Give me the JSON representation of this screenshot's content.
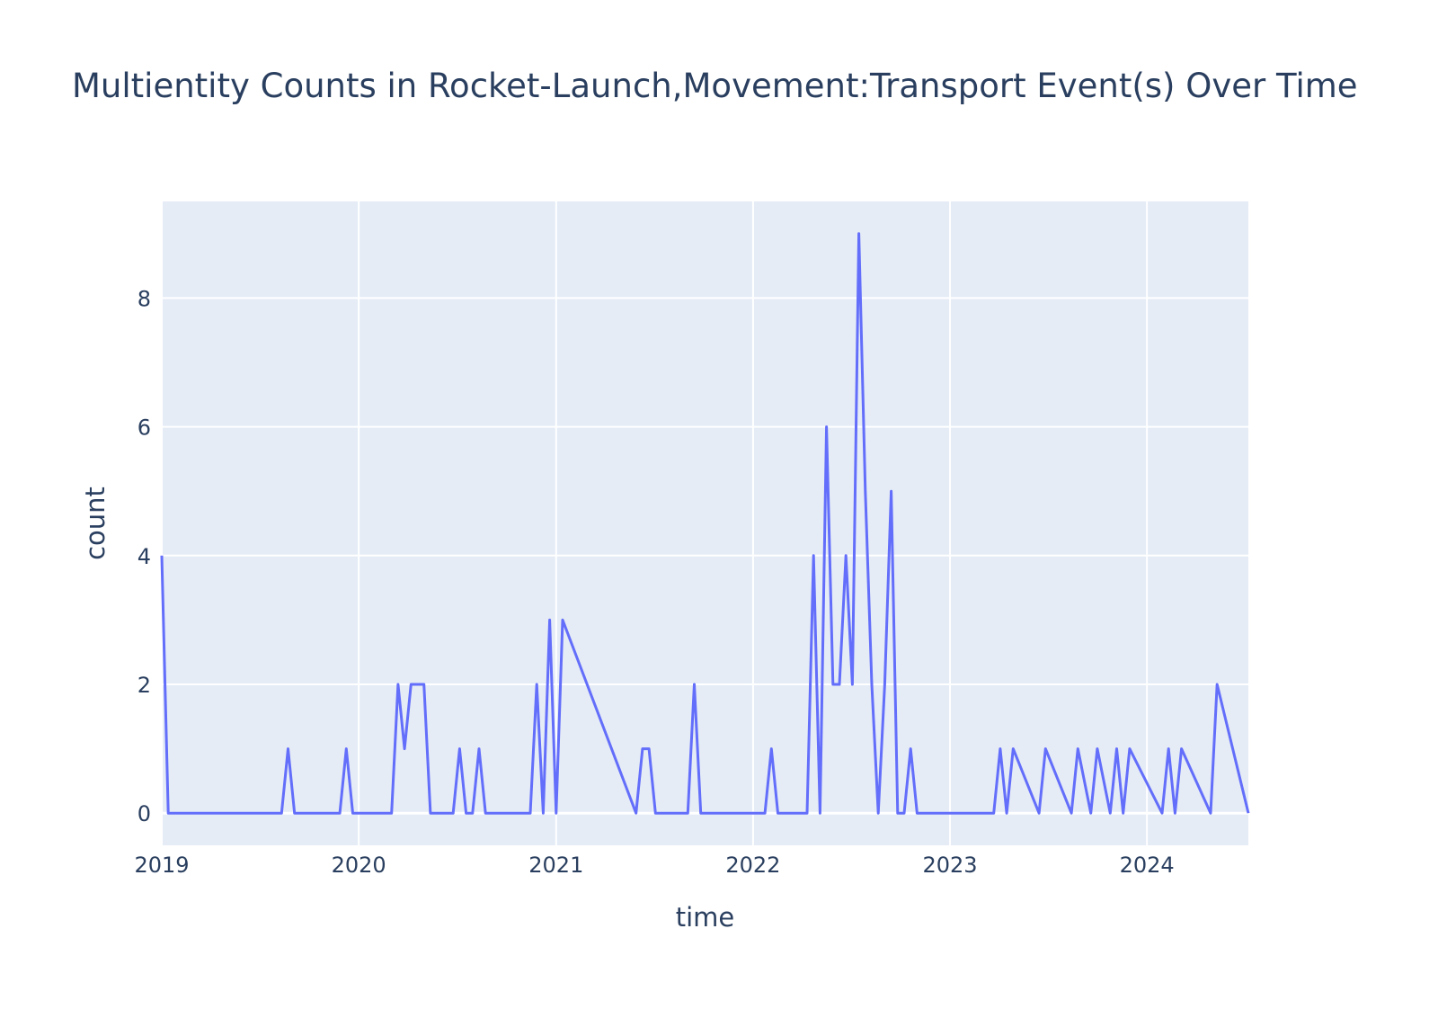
{
  "chart_data": {
    "type": "line",
    "title": "Multientity Counts in Rocket-Launch,Movement:Transport Event(s) Over Time",
    "xlabel": "time",
    "ylabel": "count",
    "x_ticks": [
      "2019",
      "2020",
      "2021",
      "2022",
      "2023",
      "2024"
    ],
    "y_ticks": [
      0,
      2,
      4,
      6,
      8
    ],
    "xlim": [
      "2019-01-01",
      "2024-07-07"
    ],
    "ylim": [
      -0.5,
      9.5
    ],
    "grid": true,
    "colors": {
      "line": "#636efa",
      "plot_bg": "#e5ecf6",
      "grid": "#ffffff",
      "text": "#2a3f5f"
    },
    "series": [
      {
        "x": [
          "2019-01-01",
          "2019-01-13",
          "2019-08-11",
          "2019-08-23",
          "2019-09-04",
          "2019-11-27",
          "2019-12-09",
          "2019-12-21",
          "2020-03-02",
          "2020-03-14",
          "2020-03-26",
          "2020-04-07",
          "2020-04-19",
          "2020-05-01",
          "2020-05-13",
          "2020-06-24",
          "2020-07-06",
          "2020-07-18",
          "2020-07-30",
          "2020-08-11",
          "2020-08-23",
          "2020-11-14",
          "2020-11-26",
          "2020-12-08",
          "2020-12-20",
          "2021-01-01",
          "2021-01-13",
          "2021-05-29",
          "2021-06-10",
          "2021-06-22",
          "2021-07-04",
          "2021-09-02",
          "2021-09-14",
          "2021-09-26",
          "2022-01-23",
          "2022-02-04",
          "2022-02-16",
          "2022-04-11",
          "2022-04-23",
          "2022-05-05",
          "2022-05-17",
          "2022-05-29",
          "2022-06-10",
          "2022-06-22",
          "2022-07-04",
          "2022-07-16",
          "2022-07-28",
          "2022-08-09",
          "2022-08-21",
          "2022-09-02",
          "2022-09-14",
          "2022-09-26",
          "2022-10-08",
          "2022-10-20",
          "2022-11-01",
          "2022-11-13",
          "2023-03-23",
          "2023-04-04",
          "2023-04-16",
          "2023-04-28",
          "2023-06-15",
          "2023-06-27",
          "2023-08-14",
          "2023-08-26",
          "2023-09-19",
          "2023-10-01",
          "2023-10-25",
          "2023-11-06",
          "2023-11-18",
          "2023-11-30",
          "2024-01-29",
          "2024-02-10",
          "2024-02-22",
          "2024-03-05",
          "2024-04-28",
          "2024-05-10",
          "2024-07-07"
        ],
        "y": [
          4,
          0,
          0,
          1,
          0,
          0,
          1,
          0,
          0,
          2,
          1,
          2,
          2,
          2,
          0,
          0,
          1,
          0,
          0,
          1,
          0,
          0,
          2,
          0,
          3,
          0,
          3,
          0,
          1,
          1,
          0,
          0,
          2,
          0,
          0,
          1,
          0,
          0,
          4,
          0,
          6,
          2,
          2,
          4,
          2,
          9,
          5,
          2,
          0,
          2,
          5,
          0,
          0,
          1,
          0,
          0,
          0,
          1,
          0,
          1,
          0,
          1,
          0,
          1,
          0,
          1,
          0,
          1,
          0,
          1,
          0,
          1,
          0,
          1,
          0,
          2,
          0
        ]
      }
    ]
  }
}
